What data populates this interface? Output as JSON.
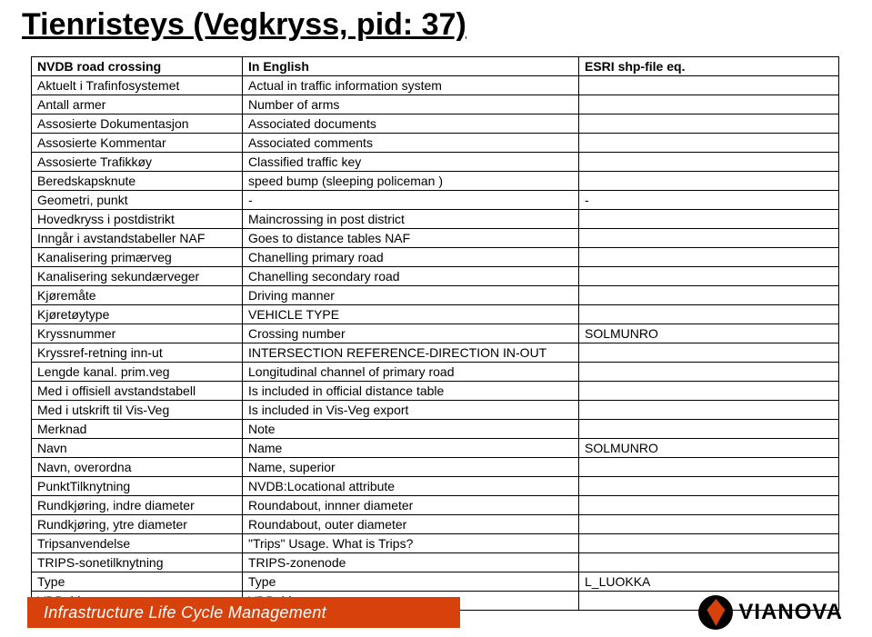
{
  "title": "Tienristeys (Vegkryss, pid: 37)",
  "headers": {
    "c1": "NVDB road crossing",
    "c2": "In English",
    "c3": "ESRI shp-file eq."
  },
  "rows": [
    {
      "a": "Aktuelt i Trafinfosystemet",
      "b": "Actual in traffic information system",
      "c": ""
    },
    {
      "a": "Antall armer",
      "b": "Number of arms",
      "c": ""
    },
    {
      "a": "Assosierte Dokumentasjon",
      "b": "Associated documents",
      "c": ""
    },
    {
      "a": "Assosierte Kommentar",
      "b": "Associated comments",
      "c": ""
    },
    {
      "a": "Assosierte Trafikkøy",
      "b": "Classified traffic key",
      "c": ""
    },
    {
      "a": "Beredskapsknute",
      "b": "speed bump (sleeping policeman )",
      "c": ""
    },
    {
      "a": "Geometri, punkt",
      "b": "-",
      "c": "-"
    },
    {
      "a": "Hovedkryss i postdistrikt",
      "b": "Maincrossing in post district",
      "c": ""
    },
    {
      "a": "Inngår i avstandstabeller NAF",
      "b": "Goes to distance tables NAF",
      "c": ""
    },
    {
      "a": "Kanalisering primærveg",
      "b": "Chanelling primary road",
      "c": ""
    },
    {
      "a": "Kanalisering sekundærveger",
      "b": "Chanelling secondary road",
      "c": ""
    },
    {
      "a": "Kjøremåte",
      "b": "Driving manner",
      "c": ""
    },
    {
      "a": "Kjøretøytype",
      "b": "VEHICLE TYPE",
      "c": ""
    },
    {
      "a": "Kryssnummer",
      "b": "Crossing number",
      "c": "SOLMUNRO"
    },
    {
      "a": "Kryssref-retning inn-ut",
      "b": "INTERSECTION REFERENCE-DIRECTION IN-OUT",
      "c": ""
    },
    {
      "a": "Lengde kanal. prim.veg",
      "b": "Longitudinal channel of primary road",
      "c": ""
    },
    {
      "a": "Med i offisiell avstandstabell",
      "b": "Is included in official distance table",
      "c": ""
    },
    {
      "a": "Med i utskrift til Vis-Veg",
      "b": "Is included in Vis-Veg export",
      "c": ""
    },
    {
      "a": "Merknad",
      "b": "Note",
      "c": ""
    },
    {
      "a": "Navn",
      "b": "Name",
      "c": "SOLMUNRO"
    },
    {
      "a": "Navn, overordna",
      "b": "Name, superior",
      "c": ""
    },
    {
      "a": "PunktTilknytning",
      "b": "NVDB:Locational attribute",
      "c": ""
    },
    {
      "a": "Rundkjøring, indre diameter",
      "b": "Roundabout, innner diameter",
      "c": ""
    },
    {
      "a": "Rundkjøring, ytre diameter",
      "b": "Roundabout, outer diameter",
      "c": ""
    },
    {
      "a": "Tripsanvendelse",
      "b": "\"Trips\" Usage. What is Trips?",
      "c": ""
    },
    {
      "a": "TRIPS-sonetilknytning",
      "b": "TRIPS-zonenode",
      "c": ""
    },
    {
      "a": "Type",
      "b": "Type",
      "c": "L_LUOKKA"
    },
    {
      "a": "VDB_id",
      "b": "VDB_id",
      "c": ""
    }
  ],
  "footer_text": "Infrastructure Life Cycle Management",
  "logo_text": "VIANOVA"
}
